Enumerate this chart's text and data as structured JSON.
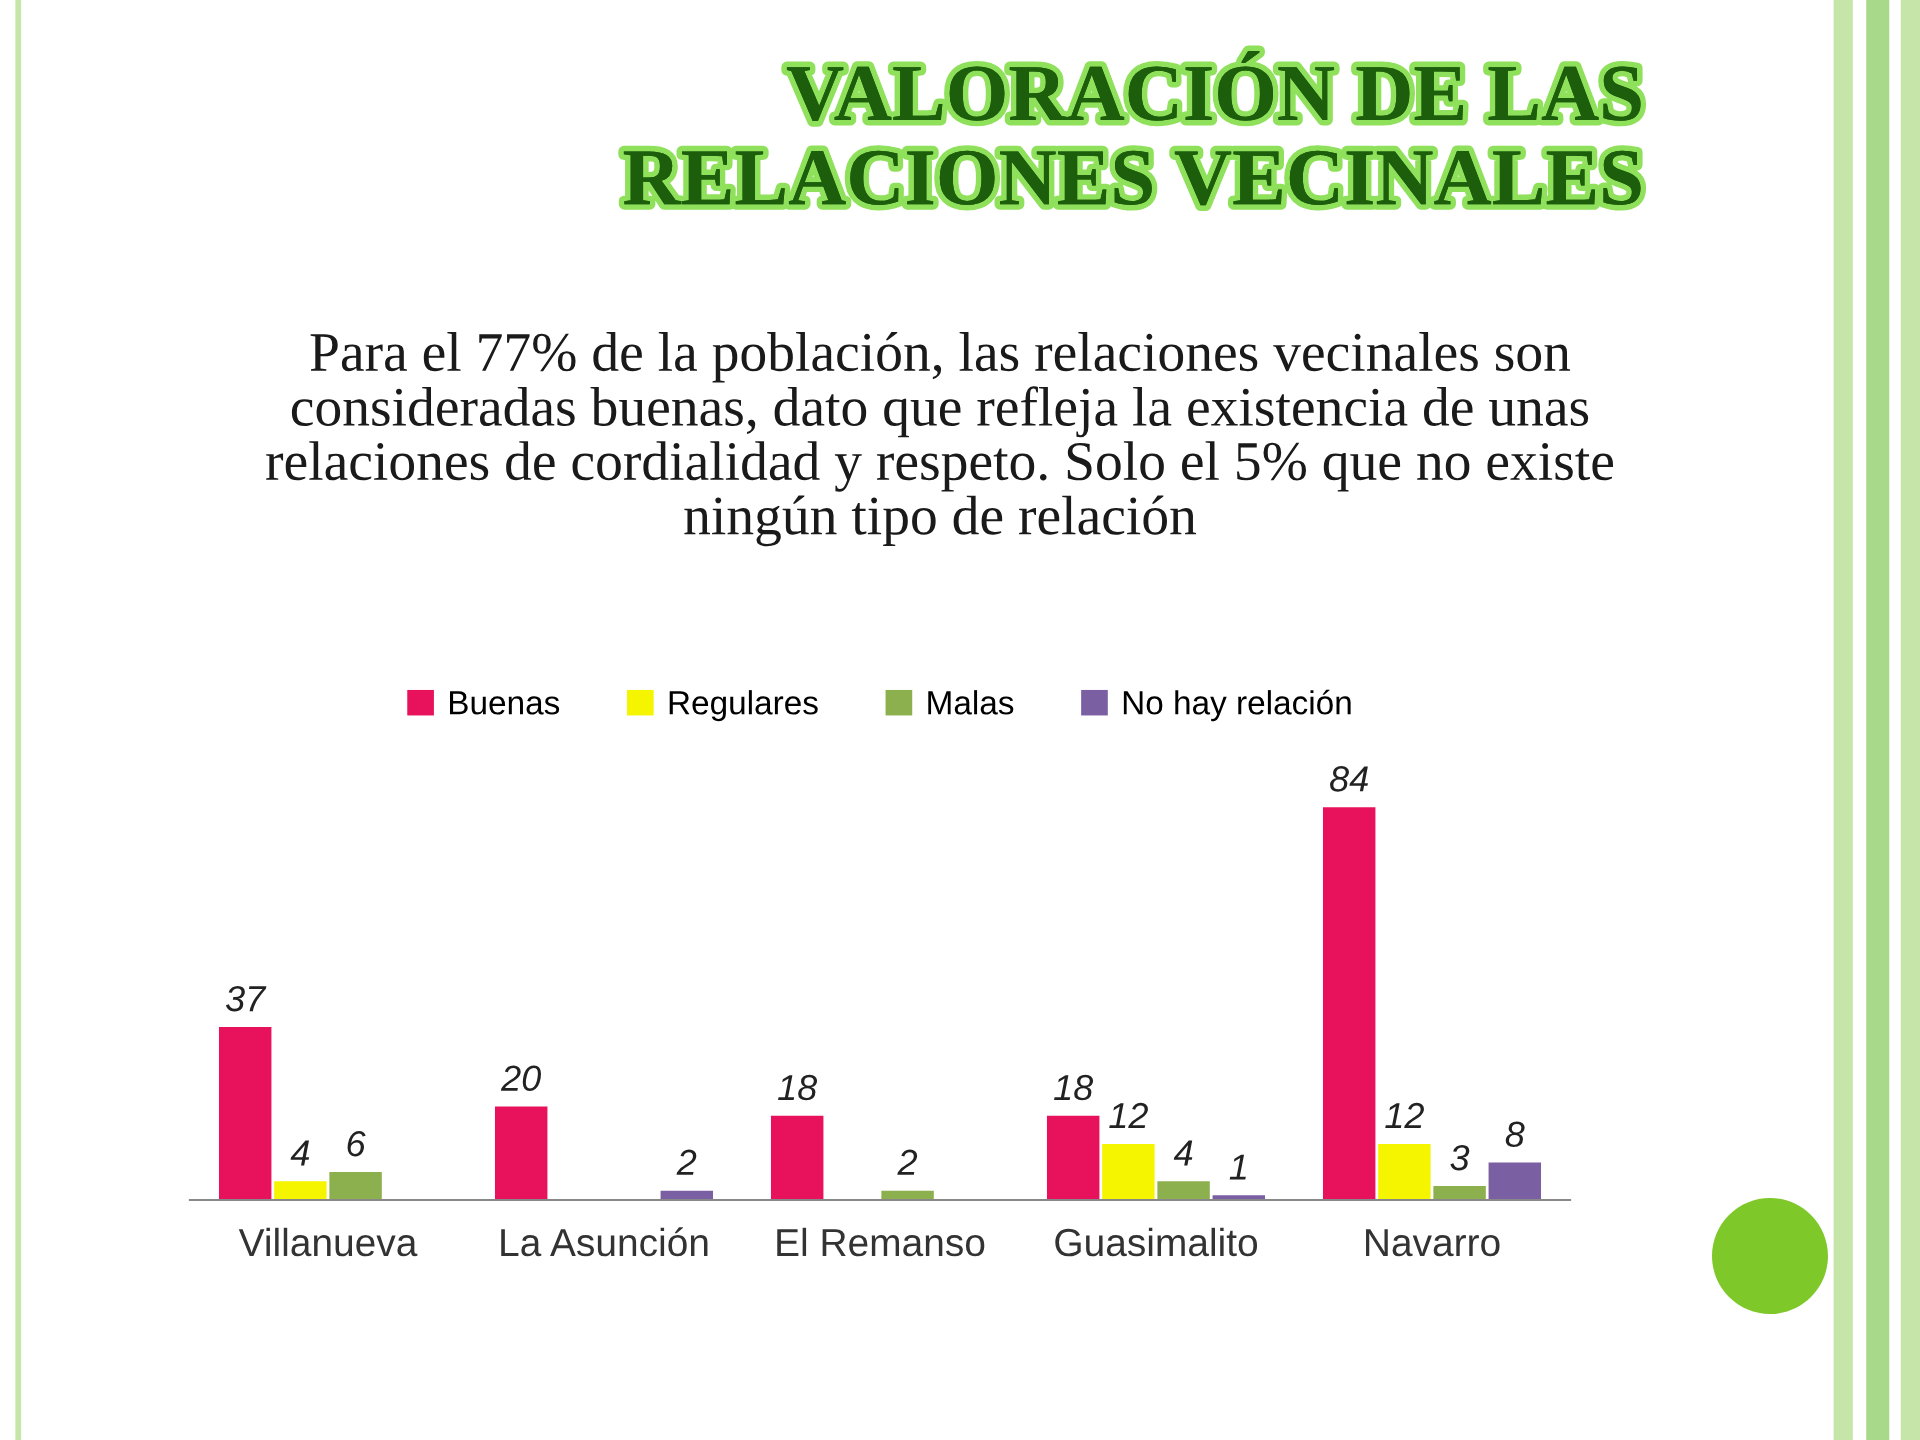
{
  "chart_data": {
    "type": "bar",
    "title": "VALORACIÓN DE LAS\nRELACIONES VECINALES",
    "subtitle": "Para el 77% de la población, las relaciones vecinales son\nconsideradas buenas, dato que refleja la existencia de unas\nrelaciones de cordialidad y respeto. Solo el 5% que no existe\nningún tipo de relación",
    "categories": [
      "Villanueva",
      "La Asunción",
      "El Remanso",
      "Guasimalito",
      "Navarro"
    ],
    "series": [
      {
        "name": "Buenas",
        "color": "#e8125c",
        "values": [
          37,
          20,
          18,
          18,
          84
        ]
      },
      {
        "name": "Regulares",
        "color": "#f5f500",
        "values": [
          4,
          null,
          null,
          12,
          12
        ]
      },
      {
        "name": "Malas",
        "color": "#8db04e",
        "values": [
          6,
          null,
          2,
          4,
          3
        ]
      },
      {
        "name": "No hay relación",
        "color": "#7b5fa3",
        "values": [
          null,
          2,
          null,
          1,
          8
        ]
      }
    ],
    "data_labels": true,
    "legend": "top",
    "tick_labels": "x"
  }
}
